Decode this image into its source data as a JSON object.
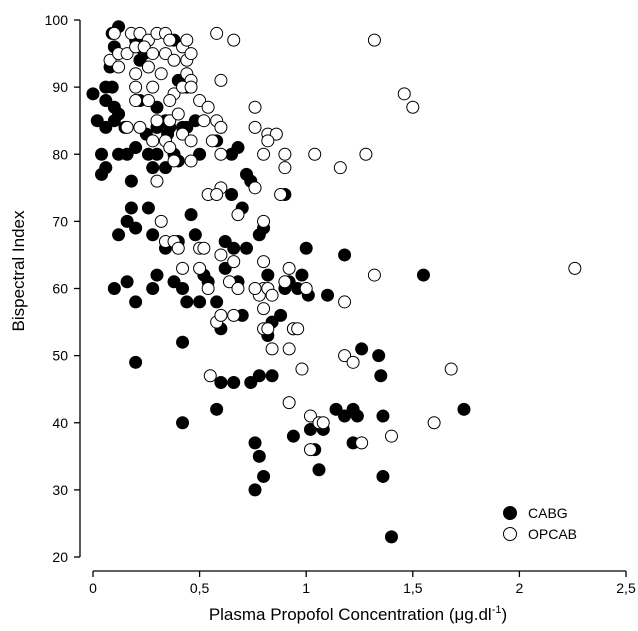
{
  "chart_data": {
    "type": "scatter",
    "title": "",
    "xlabel": "Plasma Propofol Concentration (",
    "xlabel_unit_mu": "μ",
    "xlabel_unit_rest": "g.dl",
    "xlabel_unit_exp": "-1",
    "xlabel_close": ")",
    "ylabel": "Bispectral Index",
    "xlim": [
      0,
      2.5
    ],
    "ylim": [
      20,
      100
    ],
    "xticks": [
      0,
      0.5,
      1,
      1.5,
      2,
      2.5
    ],
    "xtick_labels": [
      "0",
      "0,5",
      "1",
      "1,5",
      "2",
      "2,5"
    ],
    "yticks": [
      20,
      30,
      40,
      50,
      60,
      70,
      80,
      90,
      100
    ],
    "ytick_labels": [
      "20",
      "30",
      "40",
      "50",
      "60",
      "70",
      "80",
      "90",
      "100"
    ],
    "grid": false,
    "legend_position": "bottom-right",
    "series": [
      {
        "name": "CABG",
        "marker": "filled-circle",
        "color": "#000000",
        "points": [
          [
            0.12,
            99
          ],
          [
            0.09,
            98
          ],
          [
            0.2,
            97
          ],
          [
            0.38,
            97
          ],
          [
            0.1,
            96
          ],
          [
            0.22,
            94
          ],
          [
            0.08,
            93
          ],
          [
            0.0,
            89
          ],
          [
            0.06,
            90
          ],
          [
            0.09,
            90
          ],
          [
            0.06,
            88
          ],
          [
            0.1,
            87
          ],
          [
            0.22,
            88
          ],
          [
            0.3,
            87
          ],
          [
            0.4,
            91
          ],
          [
            0.44,
            90
          ],
          [
            0.02,
            85
          ],
          [
            0.1,
            85
          ],
          [
            0.15,
            84
          ],
          [
            0.25,
            83
          ],
          [
            0.35,
            83
          ],
          [
            0.42,
            84
          ],
          [
            0.48,
            85
          ],
          [
            0.12,
            80
          ],
          [
            0.16,
            80
          ],
          [
            0.04,
            80
          ],
          [
            0.3,
            80
          ],
          [
            0.38,
            80
          ],
          [
            0.4,
            79
          ],
          [
            0.5,
            80
          ],
          [
            0.58,
            82
          ],
          [
            0.06,
            78
          ],
          [
            0.04,
            77
          ],
          [
            0.28,
            78
          ],
          [
            0.34,
            78
          ],
          [
            0.18,
            76
          ],
          [
            0.65,
            80
          ],
          [
            0.68,
            81
          ],
          [
            0.72,
            77
          ],
          [
            0.9,
            74
          ],
          [
            0.18,
            72
          ],
          [
            0.26,
            72
          ],
          [
            0.46,
            71
          ],
          [
            0.7,
            72
          ],
          [
            0.12,
            68
          ],
          [
            0.16,
            70
          ],
          [
            0.28,
            68
          ],
          [
            0.4,
            67
          ],
          [
            0.2,
            69
          ],
          [
            0.34,
            66
          ],
          [
            0.48,
            68
          ],
          [
            0.62,
            67
          ],
          [
            0.66,
            66
          ],
          [
            0.72,
            66
          ],
          [
            0.8,
            69
          ],
          [
            0.78,
            68
          ],
          [
            0.3,
            62
          ],
          [
            0.52,
            62
          ],
          [
            0.54,
            61
          ],
          [
            0.62,
            63
          ],
          [
            0.68,
            61
          ],
          [
            0.82,
            62
          ],
          [
            0.98,
            62
          ],
          [
            1.0,
            66
          ],
          [
            1.18,
            65
          ],
          [
            1.55,
            62
          ],
          [
            0.1,
            60
          ],
          [
            0.16,
            61
          ],
          [
            0.28,
            60
          ],
          [
            0.38,
            61
          ],
          [
            0.42,
            60
          ],
          [
            0.44,
            58
          ],
          [
            0.5,
            58
          ],
          [
            0.58,
            58
          ],
          [
            0.6,
            54
          ],
          [
            0.7,
            56
          ],
          [
            0.84,
            55
          ],
          [
            0.88,
            56
          ],
          [
            0.94,
            54
          ],
          [
            0.96,
            60
          ],
          [
            1.1,
            59
          ],
          [
            0.2,
            58
          ],
          [
            0.42,
            52
          ],
          [
            0.2,
            49
          ],
          [
            0.82,
            53
          ],
          [
            1.26,
            51
          ],
          [
            1.34,
            50
          ],
          [
            1.35,
            47
          ],
          [
            0.6,
            46
          ],
          [
            0.66,
            46
          ],
          [
            0.74,
            46
          ],
          [
            0.78,
            47
          ],
          [
            0.84,
            47
          ],
          [
            0.58,
            42
          ],
          [
            0.42,
            40
          ],
          [
            1.14,
            42
          ],
          [
            1.18,
            41
          ],
          [
            1.22,
            42
          ],
          [
            1.24,
            41
          ],
          [
            1.36,
            41
          ],
          [
            1.74,
            42
          ],
          [
            0.94,
            38
          ],
          [
            1.08,
            39
          ],
          [
            1.22,
            37
          ],
          [
            0.76,
            37
          ],
          [
            0.78,
            35
          ],
          [
            1.04,
            36
          ],
          [
            0.8,
            32
          ],
          [
            0.76,
            30
          ],
          [
            1.06,
            33
          ],
          [
            1.36,
            32
          ],
          [
            1.4,
            23
          ],
          [
            0.3,
            84
          ],
          [
            0.36,
            84
          ],
          [
            0.12,
            86
          ],
          [
            0.06,
            84
          ],
          [
            0.2,
            81
          ],
          [
            0.26,
            80
          ],
          [
            0.44,
            84
          ],
          [
            0.34,
            85
          ],
          [
            0.9,
            60
          ],
          [
            0.92,
            61
          ],
          [
            1.01,
            59
          ],
          [
            1.02,
            39
          ],
          [
            0.65,
            74
          ],
          [
            0.74,
            76
          ],
          [
            0.24,
            95
          ]
        ]
      },
      {
        "name": "OPCAB",
        "marker": "open-circle",
        "color": "#ffffff",
        "points": [
          [
            0.1,
            98
          ],
          [
            0.18,
            98
          ],
          [
            0.22,
            98
          ],
          [
            0.26,
            97
          ],
          [
            0.3,
            98
          ],
          [
            0.34,
            98
          ],
          [
            0.36,
            97
          ],
          [
            0.42,
            96
          ],
          [
            0.44,
            97
          ],
          [
            0.58,
            98
          ],
          [
            0.66,
            97
          ],
          [
            1.32,
            97
          ],
          [
            0.08,
            94
          ],
          [
            0.12,
            95
          ],
          [
            0.16,
            95
          ],
          [
            0.2,
            96
          ],
          [
            0.24,
            96
          ],
          [
            0.28,
            95
          ],
          [
            0.34,
            95
          ],
          [
            0.38,
            94
          ],
          [
            0.44,
            94
          ],
          [
            0.46,
            95
          ],
          [
            0.12,
            93
          ],
          [
            0.2,
            92
          ],
          [
            0.26,
            93
          ],
          [
            0.32,
            92
          ],
          [
            0.44,
            92
          ],
          [
            0.46,
            91
          ],
          [
            0.6,
            91
          ],
          [
            0.2,
            90
          ],
          [
            0.28,
            90
          ],
          [
            0.38,
            89
          ],
          [
            0.42,
            90
          ],
          [
            0.46,
            90
          ],
          [
            1.46,
            89
          ],
          [
            0.2,
            88
          ],
          [
            0.26,
            88
          ],
          [
            0.36,
            88
          ],
          [
            0.5,
            88
          ],
          [
            0.54,
            87
          ],
          [
            0.76,
            87
          ],
          [
            1.5,
            87
          ],
          [
            0.3,
            85
          ],
          [
            0.36,
            85
          ],
          [
            0.4,
            86
          ],
          [
            0.52,
            85
          ],
          [
            0.58,
            85
          ],
          [
            0.6,
            84
          ],
          [
            0.76,
            84
          ],
          [
            0.82,
            83
          ],
          [
            0.86,
            83
          ],
          [
            0.16,
            84
          ],
          [
            0.22,
            84
          ],
          [
            0.28,
            82
          ],
          [
            0.34,
            82
          ],
          [
            0.36,
            81
          ],
          [
            0.42,
            83
          ],
          [
            0.46,
            82
          ],
          [
            0.56,
            82
          ],
          [
            0.6,
            80
          ],
          [
            0.82,
            82
          ],
          [
            0.8,
            80
          ],
          [
            0.9,
            80
          ],
          [
            1.04,
            80
          ],
          [
            1.28,
            80
          ],
          [
            0.38,
            79
          ],
          [
            0.46,
            79
          ],
          [
            0.9,
            78
          ],
          [
            1.16,
            78
          ],
          [
            0.3,
            76
          ],
          [
            0.54,
            74
          ],
          [
            0.6,
            75
          ],
          [
            0.58,
            74
          ],
          [
            0.76,
            75
          ],
          [
            0.68,
            71
          ],
          [
            0.88,
            74
          ],
          [
            0.8,
            70
          ],
          [
            0.32,
            70
          ],
          [
            0.34,
            67
          ],
          [
            0.38,
            67
          ],
          [
            0.4,
            66
          ],
          [
            0.5,
            66
          ],
          [
            0.52,
            66
          ],
          [
            0.6,
            65
          ],
          [
            0.66,
            64
          ],
          [
            0.8,
            64
          ],
          [
            0.64,
            61
          ],
          [
            0.68,
            60
          ],
          [
            0.8,
            60
          ],
          [
            0.9,
            61
          ],
          [
            1.0,
            60
          ],
          [
            0.42,
            63
          ],
          [
            0.5,
            63
          ],
          [
            0.92,
            63
          ],
          [
            1.32,
            62
          ],
          [
            2.26,
            63
          ],
          [
            0.78,
            59
          ],
          [
            0.82,
            60
          ],
          [
            0.76,
            60
          ],
          [
            0.84,
            59
          ],
          [
            0.66,
            56
          ],
          [
            0.58,
            55
          ],
          [
            0.8,
            54
          ],
          [
            0.82,
            54
          ],
          [
            0.94,
            54
          ],
          [
            0.96,
            54
          ],
          [
            1.18,
            58
          ],
          [
            0.84,
            51
          ],
          [
            0.92,
            51
          ],
          [
            1.18,
            50
          ],
          [
            1.22,
            49
          ],
          [
            0.98,
            48
          ],
          [
            1.68,
            48
          ],
          [
            0.55,
            47
          ],
          [
            0.92,
            43
          ],
          [
            1.02,
            41
          ],
          [
            1.06,
            40
          ],
          [
            1.08,
            40
          ],
          [
            1.26,
            37
          ],
          [
            1.4,
            38
          ],
          [
            1.6,
            40
          ],
          [
            1.02,
            36
          ],
          [
            0.8,
            57
          ],
          [
            0.6,
            56
          ],
          [
            0.54,
            60
          ]
        ]
      }
    ]
  }
}
